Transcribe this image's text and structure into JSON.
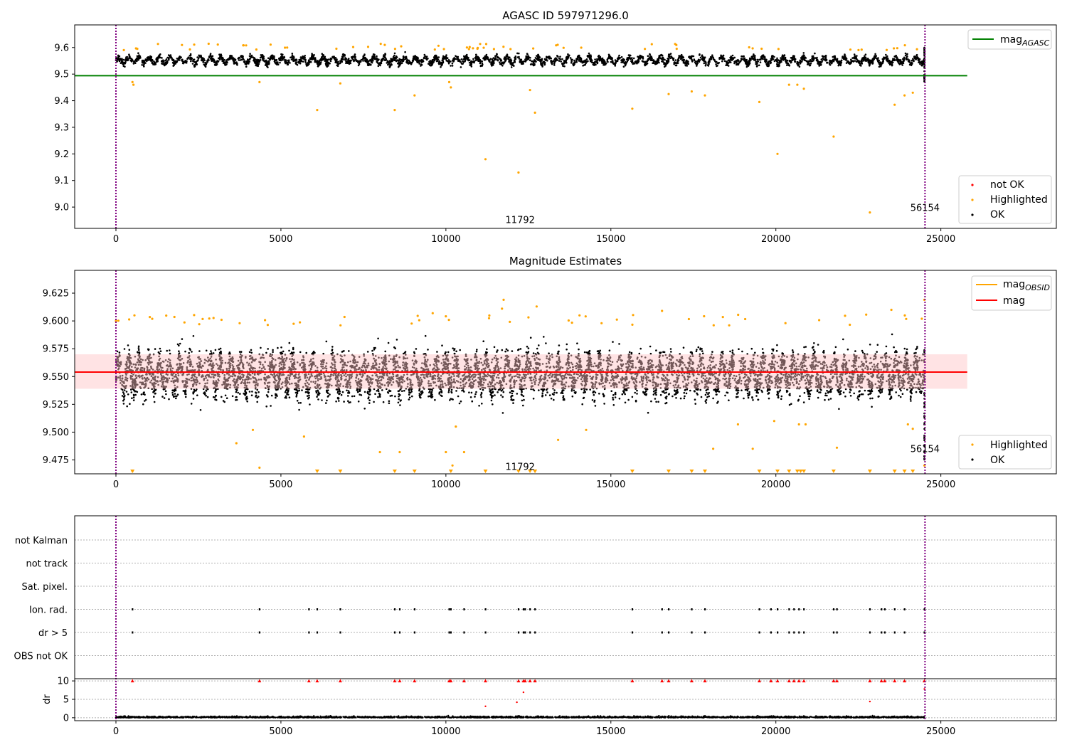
{
  "colors": {
    "ok": "#000000",
    "highlighted": "#ffa500",
    "not_ok": "#ff0000",
    "agasc_line": "#008000",
    "mag_line": "#ff0000",
    "obsid_line": "#ffa500",
    "band_fill": "#ffc0c4",
    "obsid_vline": "#800080"
  },
  "chart_data": [
    {
      "type": "scatter",
      "title": "AGASC ID 597971296.0",
      "xlim": [
        -1250,
        28500
      ],
      "ylim": [
        8.92,
        9.685
      ],
      "xticks": [
        0,
        5000,
        10000,
        15000,
        20000,
        25000
      ],
      "yticks": [
        "9.0",
        "9.1",
        "9.2",
        "9.3",
        "9.4",
        "9.5",
        "9.6"
      ],
      "hline": {
        "label": "mag_AGASC",
        "y": 9.494,
        "x_end": 25800
      },
      "obsid_lines": [
        0,
        24520
      ],
      "obsid_labels": [
        {
          "text": "11792",
          "x": 12250,
          "y": 8.94
        },
        {
          "text": "56154",
          "x": 24520,
          "y": 8.985
        }
      ],
      "ok_band": {
        "center": 9.552,
        "amplitude": 0.035,
        "period": 310,
        "x_start": 0,
        "x_end": 24500
      },
      "highlighted_points": [
        [
          500,
          9.47
        ],
        [
          530,
          9.46
        ],
        [
          4350,
          9.47
        ],
        [
          6100,
          9.365
        ],
        [
          6800,
          9.465
        ],
        [
          8450,
          9.365
        ],
        [
          9050,
          9.42
        ],
        [
          10100,
          9.47
        ],
        [
          10150,
          9.45
        ],
        [
          11200,
          9.18
        ],
        [
          12200,
          9.13
        ],
        [
          12550,
          9.44
        ],
        [
          12700,
          9.355
        ],
        [
          15650,
          9.37
        ],
        [
          16750,
          9.425
        ],
        [
          17450,
          9.435
        ],
        [
          17850,
          9.42
        ],
        [
          19500,
          9.395
        ],
        [
          20050,
          9.2
        ],
        [
          20400,
          9.46
        ],
        [
          20650,
          9.46
        ],
        [
          20850,
          9.445
        ],
        [
          21750,
          9.265
        ],
        [
          22850,
          8.98
        ],
        [
          23600,
          9.385
        ],
        [
          23900,
          9.42
        ],
        [
          24150,
          9.43
        ]
      ],
      "legend": {
        "top": [
          "mag_AGASC"
        ],
        "bottom": [
          "not OK",
          "Highlighted",
          "OK"
        ]
      }
    },
    {
      "type": "scatter",
      "title": "Magnitude Estimates",
      "xlim": [
        -1250,
        28500
      ],
      "ylim": [
        9.4625,
        9.6455
      ],
      "xticks": [
        0,
        5000,
        10000,
        15000,
        20000,
        25000
      ],
      "yticks": [
        "9.475",
        "9.500",
        "9.525",
        "9.550",
        "9.575",
        "9.600",
        "9.625"
      ],
      "mag": 9.554,
      "band": [
        9.539,
        9.57
      ],
      "obsid_mag": 9.554,
      "obsid_lines": [
        0,
        24520
      ],
      "obsid_labels": [
        {
          "text": "11792",
          "x": 12250,
          "y": 9.466
        },
        {
          "text": "56154",
          "x": 24520,
          "y": 9.482
        }
      ],
      "ok_band": {
        "center": 9.552,
        "amplitude": 0.035,
        "period": 310,
        "x_start": 0,
        "x_end": 24500
      },
      "highlighted_points": [
        [
          0,
          9.6
        ],
        [
          500,
          9.465
        ],
        [
          560,
          9.605
        ],
        [
          3200,
          9.601
        ],
        [
          3650,
          9.49
        ],
        [
          4150,
          9.502
        ],
        [
          4350,
          9.468
        ],
        [
          5700,
          9.496
        ],
        [
          8000,
          9.482
        ],
        [
          8600,
          9.482
        ],
        [
          9600,
          9.607
        ],
        [
          10000,
          9.482
        ],
        [
          10200,
          9.47
        ],
        [
          10300,
          9.505
        ],
        [
          10550,
          9.482
        ],
        [
          11700,
          9.611
        ],
        [
          11750,
          9.619
        ],
        [
          12750,
          9.613
        ],
        [
          13400,
          9.493
        ],
        [
          14050,
          9.605
        ],
        [
          14250,
          9.502
        ],
        [
          16550,
          9.609
        ],
        [
          18100,
          9.485
        ],
        [
          18850,
          9.507
        ],
        [
          19300,
          9.485
        ],
        [
          19950,
          9.51
        ],
        [
          20700,
          9.507
        ],
        [
          20900,
          9.507
        ],
        [
          21850,
          9.486
        ],
        [
          23500,
          9.61
        ],
        [
          24000,
          9.507
        ],
        [
          24150,
          9.503
        ],
        [
          24500,
          9.619
        ],
        [
          24500,
          9.47
        ]
      ],
      "clipped_low_x": [
        500,
        6100,
        6800,
        8450,
        9050,
        10150,
        11200,
        12200,
        12550,
        12700,
        12700,
        15650,
        16750,
        17450,
        17850,
        19500,
        20050,
        20400,
        20650,
        20750,
        20850,
        21750,
        22850,
        23600,
        23900,
        24150
      ],
      "legend": {
        "top": [
          "mag_OBSID",
          "mag"
        ],
        "bottom": [
          "Highlighted",
          "OK"
        ]
      }
    },
    {
      "type": "scatter",
      "title": "",
      "xlim": [
        -1250,
        28500
      ],
      "rows": [
        "not Kalman",
        "not track",
        "Sat. pixel.",
        "Ion. rad.",
        "dr > 5",
        "OBS not OK"
      ],
      "flag_points": {
        "Ion. rad.": [
          500,
          4350,
          5850,
          6100,
          6800,
          8450,
          8600,
          9050,
          10100,
          10150,
          10550,
          11200,
          12200,
          12350,
          12400,
          12550,
          12700,
          15650,
          16550,
          16750,
          17450,
          17850,
          19500,
          19850,
          20050,
          20400,
          20550,
          20700,
          20850,
          21750,
          21850,
          22850,
          23200,
          23300,
          23600,
          23900,
          24500
        ],
        "dr > 5": [
          500,
          4350,
          5850,
          6100,
          6800,
          8450,
          8600,
          9050,
          10100,
          10150,
          10550,
          11200,
          12200,
          12350,
          12400,
          12550,
          12700,
          15650,
          16550,
          16750,
          17450,
          17850,
          19500,
          19850,
          20050,
          20400,
          20550,
          20700,
          20850,
          21750,
          21850,
          22850,
          23200,
          23300,
          23600,
          23900,
          24500
        ]
      },
      "dr_panel": {
        "ylabel": "dr",
        "ylim": [
          -0.8,
          10.6
        ],
        "yticks": [
          "0",
          "5",
          "10"
        ],
        "xticks": [
          0,
          5000,
          10000,
          15000,
          20000,
          25000
        ],
        "capped_x": [
          500,
          4350,
          5850,
          6100,
          6800,
          8450,
          8600,
          9050,
          10100,
          10150,
          10550,
          11200,
          12200,
          12350,
          12400,
          12550,
          12700,
          15650,
          16550,
          16750,
          17450,
          17850,
          19500,
          19850,
          20050,
          20400,
          20550,
          20700,
          20850,
          21750,
          21850,
          22850,
          23200,
          23300,
          23600,
          23900,
          24500
        ],
        "mid_points": [
          [
            11200,
            3.1
          ],
          [
            12150,
            4.2
          ],
          [
            12350,
            6.9
          ],
          [
            22850,
            4.4
          ],
          [
            24500,
            7.8
          ]
        ]
      },
      "obsid_lines": [
        0,
        24520
      ]
    }
  ]
}
